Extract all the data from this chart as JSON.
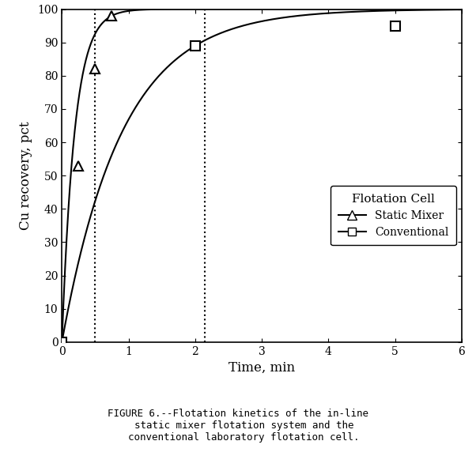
{
  "title": "",
  "xlabel": "Time, min",
  "ylabel": "Cu recovery, pct",
  "xlim": [
    0,
    6
  ],
  "ylim": [
    0,
    100
  ],
  "xticks": [
    0,
    1,
    2,
    3,
    4,
    5,
    6
  ],
  "yticks": [
    0,
    10,
    20,
    30,
    40,
    50,
    60,
    70,
    80,
    90,
    100
  ],
  "static_mixer_points_x": [
    0,
    0.25,
    0.5,
    0.75
  ],
  "static_mixer_points_y": [
    0,
    53,
    82,
    98
  ],
  "conventional_points_x": [
    0,
    2.0,
    5.0
  ],
  "conventional_points_y": [
    0,
    89,
    95
  ],
  "dotted_vline_x1": 0.5,
  "dotted_vline_x2": 2.15,
  "legend_title": "Flotation Cell",
  "legend_labels": [
    "Static Mixer",
    "Conventional"
  ],
  "background_color": "#ffffff",
  "line_color": "#000000",
  "caption_line1": "FIGURE 6.--Flotation kinetics of the in-line",
  "caption_line2": "  static mixer flotation system and the",
  "caption_line3": "  conventional laboratory flotation cell."
}
